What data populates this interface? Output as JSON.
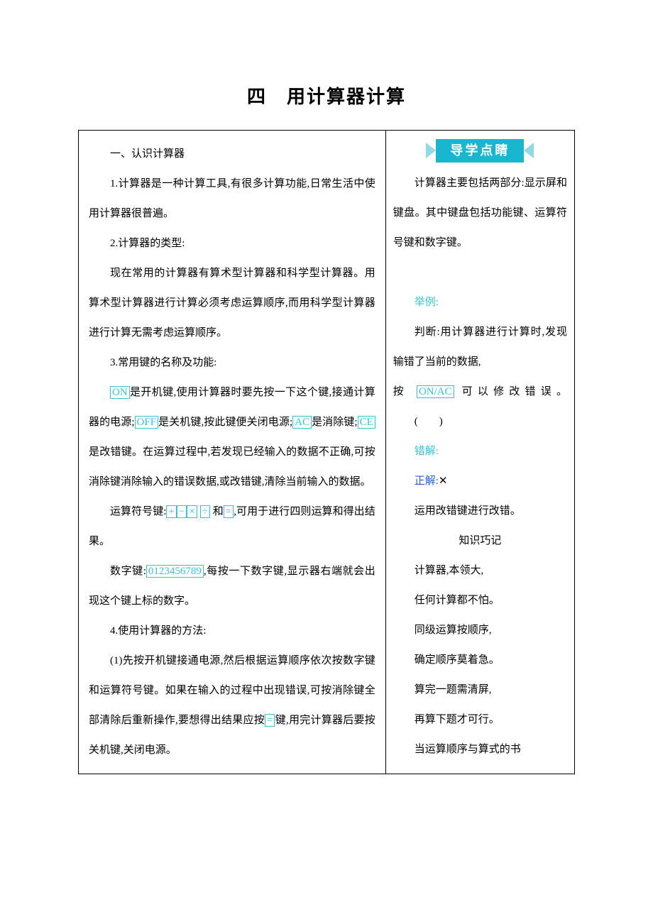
{
  "title": "四　用计算器计算",
  "left": {
    "heading": "一、认识计算器",
    "p1": "1.计算器是一种计算工具,有很多计算功能,日常生活中使用计算器很普遍。",
    "p2": "2.计算器的类型:",
    "p3": "现在常用的计算器有算术型计算器和科学型计算器。用算术型计算器进行计算必须考虑运算顺序,而用科学型计算器进行计算无需考虑运算顺序。",
    "p4": "3.常用键的名称及功能:",
    "p5_pre": "",
    "p5_on": "ON",
    "p5_a": "是开机键,使用计算器时要先按一下这个键,接通计算器的电源;",
    "p5_off": "OFF",
    "p5_b": "是关机键,按此键便关闭电源;",
    "p5_ac": "AC",
    "p5_c": "是消除键;",
    "p5_ce": "CE",
    "p5_d": "是改错键。在运算过程中,若发现已经输入的数据不正确,可按消除键消除输入的错误数据,或改错键,清除当前输入的数据。",
    "p6_a": "运算符号键:",
    "p6_plus": "+",
    "p6_minus": "−",
    "p6_mul": "×",
    "p6_div": "÷",
    "p6_b": "和",
    "p6_eq": "=",
    "p6_c": ",可用于进行四则运算和得出结果。",
    "p7_a": "数字键:",
    "p7_digits": "0123456789",
    "p7_b": ",每按一下数字键,显示器右端就会出现这个键上标的数字。",
    "p8": "4.使用计算器的方法:",
    "p9_a": "(1)先按开机键接通电源,然后根据运算顺序依次按数字键和运算符号键。如果在输入的过程中出现错误,可按消除键全部清除后重新操作,要想得出结果应按",
    "p9_eq": "=",
    "p9_b": "键,用完计算器后要按关机键,关闭电源。"
  },
  "right": {
    "banner": "导学点睛",
    "p1": "计算器主要包括两部分:显示屏和键盘。其中键盘包括功能键、运算符号键和数字键。",
    "ex_label": "举例:",
    "ex_q1": "判断:用计算器进行计算时,发现输错了当前的数据,",
    "ex_q2a": "按",
    "ex_q2_key": "ON/AC",
    "ex_q2b": "可以修改错误。",
    "ex_paren": "(　　)",
    "err": "错解:",
    "corr_label": "正解:",
    "corr_val": "✕",
    "note": "运用改错键进行改错。",
    "tip_head": "知识巧记",
    "t1": "计算器,本领大,",
    "t2": "任何计算都不怕。",
    "t3": "同级运算按顺序,",
    "t4": "确定顺序莫着急。",
    "t5": "算完一题需清屏,",
    "t6": "再算下题才可行。",
    "t7": "当运算顺序与算式的书"
  },
  "colors": {
    "key_border": "#33c6d6",
    "key_text": "#33c6d6",
    "banner_bg": "#19b6d0",
    "banner_arrow": "#8fd9e8",
    "corr_label": "#1f5fd6"
  }
}
